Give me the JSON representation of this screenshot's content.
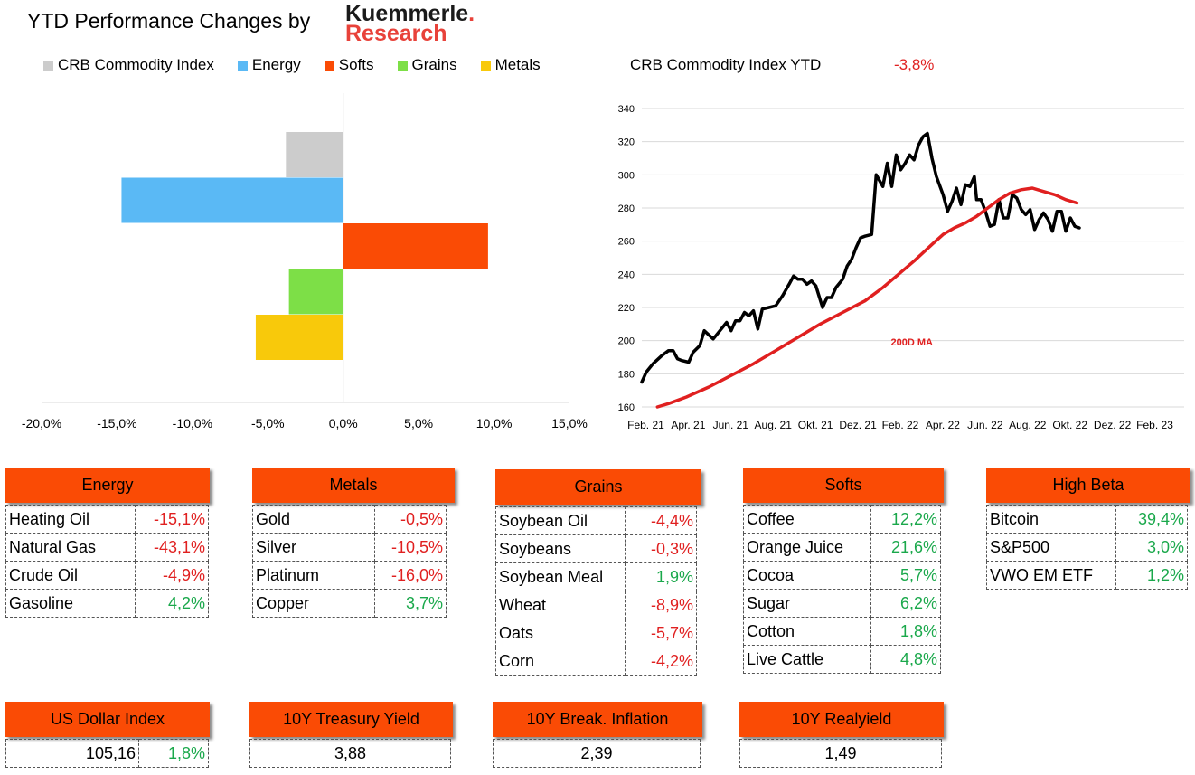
{
  "header": {
    "title": "YTD Performance Changes by",
    "logo_line1": "Kuemmerle",
    "logo_dot": ".",
    "logo_line2": "Research"
  },
  "legend": [
    {
      "label": "CRB Commodity Index",
      "color": "#cccccc"
    },
    {
      "label": "Energy",
      "color": "#5ab9f5"
    },
    {
      "label": "Softs",
      "color": "#fa4b05"
    },
    {
      "label": "Grains",
      "color": "#7ddf47"
    },
    {
      "label": "Metals",
      "color": "#f8c90b"
    }
  ],
  "ytd": {
    "label": "CRB Commodity Index YTD",
    "value": "-3,8%"
  },
  "chart_data": [
    {
      "type": "bar",
      "orientation": "horizontal",
      "categories": [
        "CRB Commodity Index",
        "Energy",
        "Softs",
        "Grains",
        "Metals"
      ],
      "values": [
        -3.8,
        -14.7,
        9.6,
        -3.6,
        -5.8
      ],
      "colors": [
        "#cccccc",
        "#5ab9f5",
        "#fa4b05",
        "#7ddf47",
        "#f8c90b"
      ],
      "xlim": [
        -20,
        15
      ],
      "xticks": [
        -20,
        -15,
        -10,
        -5,
        0,
        5,
        10,
        15
      ],
      "xtick_labels": [
        "-20,0%",
        "-15,0%",
        "-10,0%",
        "-5,0%",
        "0,0%",
        "5,0%",
        "10,0%",
        "15,0%"
      ]
    },
    {
      "type": "line",
      "title": "CRB Commodity Index YTD",
      "ylim": [
        160,
        340
      ],
      "yticks": [
        160,
        180,
        200,
        220,
        240,
        260,
        280,
        300,
        320,
        340
      ],
      "xtick_labels": [
        "Feb. 21",
        "Apr. 21",
        "Jun. 21",
        "Aug. 21",
        "Okt. 21",
        "Dez. 21",
        "Feb. 22",
        "Apr. 22",
        "Jun. 22",
        "Aug. 22",
        "Okt. 22",
        "Dez. 22",
        "Feb. 23"
      ],
      "x_range": [
        0,
        24.3
      ],
      "annotation": "200D MA",
      "series": [
        {
          "name": "CRB Commodity Index",
          "color": "#000000",
          "points": [
            [
              0,
              175
            ],
            [
              0.2,
              181
            ],
            [
              0.5,
              186
            ],
            [
              0.9,
              191
            ],
            [
              1.2,
              194
            ],
            [
              1.4,
              194
            ],
            [
              1.6,
              189
            ],
            [
              1.8,
              188
            ],
            [
              2.1,
              187
            ],
            [
              2.3,
              193
            ],
            [
              2.6,
              197
            ],
            [
              2.8,
              206
            ],
            [
              3.2,
              201
            ],
            [
              3.5,
              206
            ],
            [
              3.8,
              211
            ],
            [
              4.0,
              206
            ],
            [
              4.2,
              212
            ],
            [
              4.4,
              212
            ],
            [
              4.6,
              217
            ],
            [
              4.8,
              215
            ],
            [
              5.0,
              218
            ],
            [
              5.2,
              207
            ],
            [
              5.4,
              219
            ],
            [
              5.7,
              220
            ],
            [
              6.0,
              221
            ],
            [
              6.3,
              227
            ],
            [
              6.6,
              234
            ],
            [
              6.8,
              239
            ],
            [
              7.0,
              237
            ],
            [
              7.2,
              237
            ],
            [
              7.4,
              234
            ],
            [
              7.6,
              236
            ],
            [
              7.8,
              233
            ],
            [
              8.1,
              220
            ],
            [
              8.3,
              226
            ],
            [
              8.5,
              226
            ],
            [
              8.7,
              232
            ],
            [
              9.0,
              237
            ],
            [
              9.2,
              245
            ],
            [
              9.4,
              249
            ],
            [
              9.6,
              256
            ],
            [
              9.8,
              262
            ],
            [
              10.0,
              263
            ],
            [
              10.3,
              264
            ],
            [
              10.5,
              300
            ],
            [
              10.8,
              293
            ],
            [
              11.0,
              307
            ],
            [
              11.2,
              293
            ],
            [
              11.4,
              312
            ],
            [
              11.6,
              303
            ],
            [
              11.8,
              307
            ],
            [
              12.0,
              312
            ],
            [
              12.2,
              309
            ],
            [
              12.4,
              318
            ],
            [
              12.6,
              323
            ],
            [
              12.8,
              325
            ],
            [
              13.0,
              310
            ],
            [
              13.2,
              299
            ],
            [
              13.5,
              288
            ],
            [
              13.7,
              278
            ],
            [
              13.9,
              284
            ],
            [
              14.1,
              292
            ],
            [
              14.3,
              282
            ],
            [
              14.5,
              294
            ],
            [
              14.7,
              293
            ],
            [
              14.9,
              299
            ],
            [
              15.0,
              285
            ],
            [
              15.2,
              285
            ],
            [
              15.4,
              278
            ],
            [
              15.6,
              269
            ],
            [
              15.8,
              270
            ],
            [
              16.0,
              285
            ],
            [
              16.2,
              274
            ],
            [
              16.4,
              274
            ],
            [
              16.6,
              288
            ],
            [
              16.8,
              286
            ],
            [
              17.0,
              279
            ],
            [
              17.2,
              276
            ],
            [
              17.4,
              279
            ],
            [
              17.6,
              267
            ],
            [
              17.8,
              273
            ],
            [
              18.0,
              277
            ],
            [
              18.2,
              273
            ],
            [
              18.4,
              266
            ],
            [
              18.6,
              278
            ],
            [
              18.8,
              278
            ],
            [
              19.0,
              266
            ],
            [
              19.2,
              274
            ],
            [
              19.4,
              269
            ],
            [
              19.6,
              268
            ]
          ]
        },
        {
          "name": "200D MA",
          "color": "#e02020",
          "points": [
            [
              0.7,
              160
            ],
            [
              1.2,
              162
            ],
            [
              2.0,
              166
            ],
            [
              3.0,
              172
            ],
            [
              4.0,
              179
            ],
            [
              5.0,
              186
            ],
            [
              6.0,
              194
            ],
            [
              7.0,
              202
            ],
            [
              8.0,
              210
            ],
            [
              9.0,
              217
            ],
            [
              10.0,
              224
            ],
            [
              10.8,
              232
            ],
            [
              11.5,
              240
            ],
            [
              12.2,
              248
            ],
            [
              13.0,
              258
            ],
            [
              13.5,
              264
            ],
            [
              14.0,
              268
            ],
            [
              14.5,
              271
            ],
            [
              15.0,
              275
            ],
            [
              15.5,
              280
            ],
            [
              16.0,
              285
            ],
            [
              16.5,
              289
            ],
            [
              17.0,
              291
            ],
            [
              17.5,
              292
            ],
            [
              18.0,
              290
            ],
            [
              18.5,
              288
            ],
            [
              19.0,
              285
            ],
            [
              19.5,
              283
            ]
          ]
        }
      ]
    }
  ],
  "tables": {
    "energy": {
      "header": "Energy",
      "rows": [
        {
          "name": "Heating Oil",
          "value": "-15,1%"
        },
        {
          "name": "Natural Gas",
          "value": "-43,1%"
        },
        {
          "name": "Crude Oil",
          "value": "-4,9%"
        },
        {
          "name": "Gasoline",
          "value": "4,2%"
        }
      ]
    },
    "metals": {
      "header": "Metals",
      "rows": [
        {
          "name": "Gold",
          "value": "-0,5%"
        },
        {
          "name": "Silver",
          "value": "-10,5%"
        },
        {
          "name": "Platinum",
          "value": "-16,0%"
        },
        {
          "name": "Copper",
          "value": "3,7%"
        }
      ]
    },
    "grains": {
      "header": "Grains",
      "rows": [
        {
          "name": "Soybean Oil",
          "value": "-4,4%"
        },
        {
          "name": "Soybeans",
          "value": "-0,3%"
        },
        {
          "name": "Soybean Meal",
          "value": "1,9%"
        },
        {
          "name": "Wheat",
          "value": "-8,9%"
        },
        {
          "name": "Oats",
          "value": "-5,7%"
        },
        {
          "name": "Corn",
          "value": "-4,2%"
        }
      ]
    },
    "softs": {
      "header": "Softs",
      "rows": [
        {
          "name": "Coffee",
          "value": "12,2%"
        },
        {
          "name": "Orange Juice",
          "value": "21,6%"
        },
        {
          "name": "Cocoa",
          "value": "5,7%"
        },
        {
          "name": "Sugar",
          "value": "6,2%"
        },
        {
          "name": "Cotton",
          "value": "1,8%"
        },
        {
          "name": "Live Cattle",
          "value": "4,8%"
        }
      ]
    },
    "highbeta": {
      "header": "High Beta",
      "rows": [
        {
          "name": "Bitcoin",
          "value": "39,4%"
        },
        {
          "name": "S&P500",
          "value": "3,0%"
        },
        {
          "name": "VWO EM ETF",
          "value": "1,2%"
        }
      ]
    }
  },
  "indicators": {
    "usd": {
      "header": "US Dollar Index",
      "value": "105,16",
      "change": "1,8%"
    },
    "treasury": {
      "header": "10Y Treasury Yield",
      "value": "3,88"
    },
    "breakeven": {
      "header": "10Y Break. Inflation",
      "value": "2,39"
    },
    "realyield": {
      "header": "10Y Realyield",
      "value": "1,49"
    }
  }
}
